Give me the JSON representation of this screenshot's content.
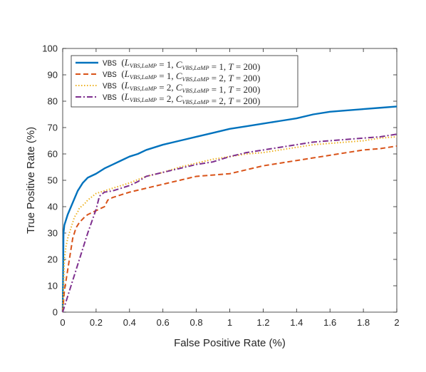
{
  "chart_data": {
    "type": "line",
    "title": "",
    "xlabel": "False Positive Rate (%)",
    "ylabel": "True Positive Rate (%)",
    "xlim": [
      0,
      2
    ],
    "ylim": [
      0,
      100
    ],
    "xticks": [
      "0",
      "0.2",
      "0.4",
      "0.6",
      "0.8",
      "1",
      "1.2",
      "1.4",
      "1.6",
      "1.8",
      "2"
    ],
    "yticks": [
      "0",
      "10",
      "20",
      "30",
      "40",
      "50",
      "60",
      "70",
      "80",
      "90",
      "100"
    ],
    "grid": false,
    "legend_position": "top-left",
    "series": [
      {
        "name": "VBS (L_{VBS,LaMP} = 1, C_{VBS,LaMP} = 1, T = 200)",
        "color": "#0072bd",
        "style": "solid",
        "x": [
          0,
          0.005,
          0.01,
          0.02,
          0.03,
          0.05,
          0.07,
          0.09,
          0.1,
          0.12,
          0.15,
          0.2,
          0.25,
          0.3,
          0.35,
          0.4,
          0.45,
          0.5,
          0.6,
          0.7,
          0.8,
          0.9,
          1.0,
          1.1,
          1.2,
          1.3,
          1.4,
          1.5,
          1.6,
          1.7,
          1.8,
          1.9,
          2.0
        ],
        "y": [
          0,
          30,
          33,
          35,
          37,
          40,
          43,
          46,
          47,
          49,
          51,
          52.5,
          54.5,
          56,
          57.5,
          59,
          60,
          61.5,
          63.5,
          65,
          66.5,
          68,
          69.5,
          70.5,
          71.5,
          72.5,
          73.5,
          75,
          76,
          76.5,
          77,
          77.5,
          78
        ]
      },
      {
        "name": "VBS (L_{VBS,LaMP} = 1, C_{VBS,LaMP} = 2, T = 200)",
        "color": "#d95319",
        "style": "dashed",
        "x": [
          0,
          0.01,
          0.02,
          0.04,
          0.06,
          0.08,
          0.1,
          0.13,
          0.15,
          0.2,
          0.25,
          0.27,
          0.3,
          0.4,
          0.5,
          0.6,
          0.7,
          0.8,
          0.9,
          1.0,
          1.1,
          1.2,
          1.3,
          1.4,
          1.5,
          1.6,
          1.7,
          1.8,
          1.9,
          2.0
        ],
        "y": [
          0,
          8,
          12,
          20,
          28,
          32,
          34,
          36,
          37,
          38.5,
          40,
          42.5,
          43.5,
          45.5,
          47,
          48.5,
          50,
          51.5,
          52,
          52.5,
          54,
          55.5,
          56.5,
          57.5,
          58.5,
          59.5,
          60.5,
          61.5,
          62,
          63
        ]
      },
      {
        "name": "VBS (L_{VBS,LaMP} = 2, C_{VBS,LaMP} = 1, T = 200)",
        "color": "#edb120",
        "style": "dotted",
        "x": [
          0,
          0.01,
          0.02,
          0.03,
          0.05,
          0.07,
          0.09,
          0.1,
          0.13,
          0.15,
          0.2,
          0.25,
          0.3,
          0.35,
          0.4,
          0.5,
          0.6,
          0.7,
          0.8,
          0.9,
          1.0,
          1.1,
          1.2,
          1.3,
          1.4,
          1.5,
          1.6,
          1.7,
          1.8,
          1.9,
          2.0
        ],
        "y": [
          0,
          20,
          25,
          28,
          32,
          36,
          38,
          39.5,
          41,
          42.5,
          45,
          46,
          47,
          48,
          49,
          51.5,
          53,
          55,
          56.5,
          58,
          59,
          60,
          60.5,
          61.5,
          62.5,
          63.5,
          64,
          64.5,
          65,
          66,
          66.5
        ]
      },
      {
        "name": "VBS (L_{VBS,LaMP} = 2, C_{VBS,LaMP} = 2, T = 200)",
        "color": "#7e2f8e",
        "style": "dashdot",
        "x": [
          0,
          0.05,
          0.1,
          0.15,
          0.2,
          0.22,
          0.25,
          0.3,
          0.35,
          0.4,
          0.45,
          0.5,
          0.6,
          0.7,
          0.8,
          0.9,
          1.0,
          1.1,
          1.2,
          1.3,
          1.4,
          1.5,
          1.6,
          1.7,
          1.8,
          1.9,
          2.0
        ],
        "y": [
          0,
          10,
          20,
          30,
          39,
          44,
          45.5,
          46,
          47,
          48,
          49.5,
          51.5,
          53,
          54.5,
          56,
          57,
          59,
          60.5,
          61.5,
          62.5,
          63.5,
          64.5,
          65,
          65.5,
          66,
          66.5,
          67.5
        ]
      }
    ]
  }
}
